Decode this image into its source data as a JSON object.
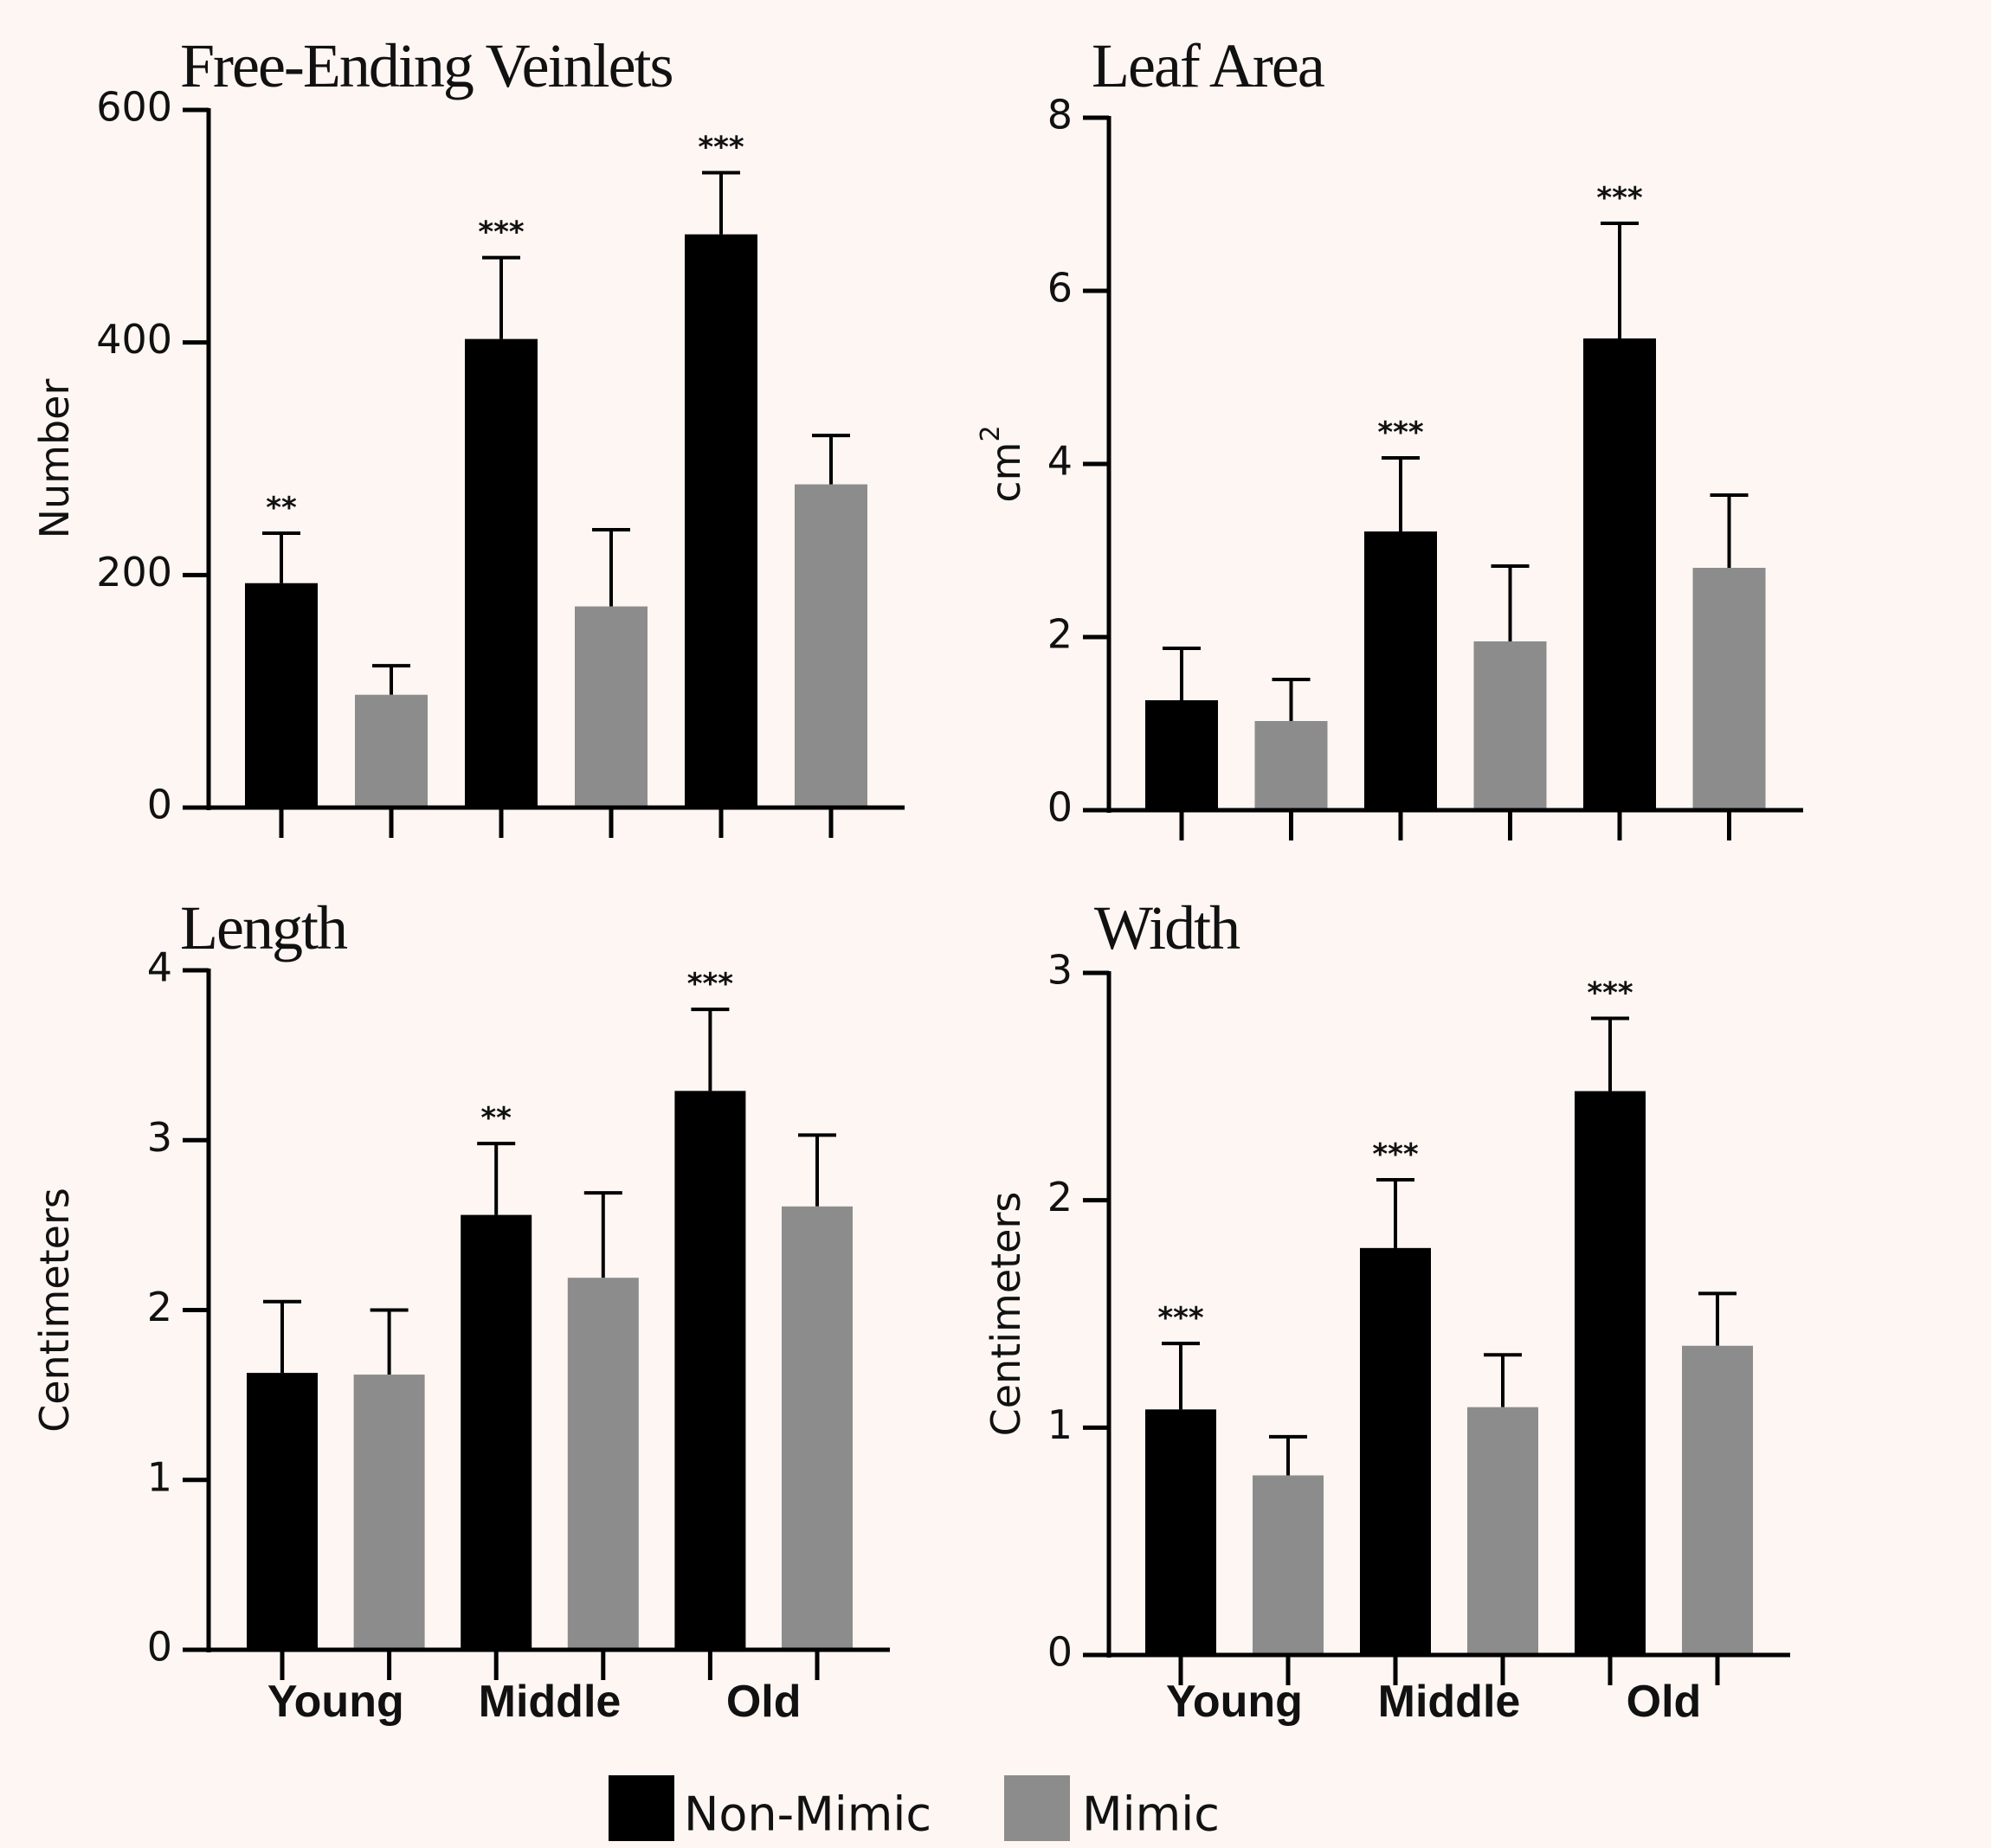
{
  "legend": {
    "items": [
      {
        "label": "Non-Mimic",
        "color": "#000000"
      },
      {
        "label": "Mimic",
        "color": "#8c8c8c"
      }
    ]
  },
  "chart_data": [
    {
      "type": "bar",
      "title": "Free-Ending Veinlets",
      "ylabel": "Number",
      "ylabel_superscript": "",
      "ylim": [
        0,
        600
      ],
      "yticks": [
        0,
        200,
        400,
        600
      ],
      "categories": [
        "Young",
        "Middle",
        "Old"
      ],
      "show_category_labels": false,
      "series": [
        {
          "name": "Non-Mimic",
          "color": "#000000",
          "values": [
            193,
            403,
            493
          ],
          "errors": [
            43,
            70,
            53
          ],
          "significance": [
            "**",
            "***",
            "***"
          ]
        },
        {
          "name": "Mimic",
          "color": "#8c8c8c",
          "values": [
            97,
            173,
            278
          ],
          "errors": [
            25,
            66,
            42
          ],
          "significance": [
            "",
            "",
            ""
          ]
        }
      ]
    },
    {
      "type": "bar",
      "title": "Leaf Area",
      "ylabel": "cm",
      "ylabel_superscript": "2",
      "ylim": [
        0,
        8
      ],
      "yticks": [
        0,
        2,
        4,
        6,
        8
      ],
      "categories": [
        "Young",
        "Middle",
        "Old"
      ],
      "show_category_labels": false,
      "series": [
        {
          "name": "Non-Mimic",
          "color": "#000000",
          "values": [
            1.27,
            3.22,
            5.45
          ],
          "errors": [
            0.6,
            0.85,
            1.33
          ],
          "significance": [
            "",
            "***",
            "***"
          ]
        },
        {
          "name": "Mimic",
          "color": "#8c8c8c",
          "values": [
            1.03,
            1.95,
            2.8
          ],
          "errors": [
            0.48,
            0.87,
            0.84
          ],
          "significance": [
            "",
            "",
            ""
          ]
        }
      ]
    },
    {
      "type": "bar",
      "title": "Length",
      "ylabel": "Centimeters",
      "ylabel_superscript": "",
      "ylim": [
        0,
        4
      ],
      "yticks": [
        0,
        1,
        2,
        3,
        4
      ],
      "categories": [
        "Young",
        "Middle",
        "Old"
      ],
      "show_category_labels": true,
      "series": [
        {
          "name": "Non-Mimic",
          "color": "#000000",
          "values": [
            1.63,
            2.56,
            3.29
          ],
          "errors": [
            0.42,
            0.42,
            0.48
          ],
          "significance": [
            "",
            "**",
            "***"
          ]
        },
        {
          "name": "Mimic",
          "color": "#8c8c8c",
          "values": [
            1.62,
            2.19,
            2.61
          ],
          "errors": [
            0.38,
            0.5,
            0.42
          ],
          "significance": [
            "",
            "",
            ""
          ]
        }
      ]
    },
    {
      "type": "bar",
      "title": "Width",
      "ylabel": "Centimeters",
      "ylabel_superscript": "",
      "ylim": [
        0,
        3
      ],
      "yticks": [
        0,
        1,
        2,
        3
      ],
      "categories": [
        "Young",
        "Middle",
        "Old"
      ],
      "show_category_labels": true,
      "series": [
        {
          "name": "Non-Mimic",
          "color": "#000000",
          "values": [
            1.08,
            1.79,
            2.48
          ],
          "errors": [
            0.29,
            0.3,
            0.32
          ],
          "significance": [
            "***",
            "***",
            "***"
          ]
        },
        {
          "name": "Mimic",
          "color": "#8c8c8c",
          "values": [
            0.79,
            1.09,
            1.36
          ],
          "errors": [
            0.17,
            0.23,
            0.23
          ],
          "significance": [
            "",
            "",
            ""
          ]
        }
      ]
    }
  ]
}
